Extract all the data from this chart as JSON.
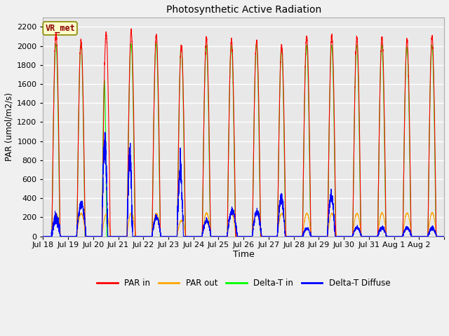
{
  "title": "Photosynthetic Active Radiation",
  "ylabel": "PAR (umol/m2/s)",
  "xlabel": "Time",
  "annotation": "VR_met",
  "ylim": [
    0,
    2300
  ],
  "yticks": [
    0,
    200,
    400,
    600,
    800,
    1000,
    1200,
    1400,
    1600,
    1800,
    2000,
    2200
  ],
  "series_colors": {
    "PAR_in": "#ff0000",
    "PAR_out": "#ffa500",
    "DeltaT_in": "#00ff00",
    "DeltaT_Diffuse": "#0000ff"
  },
  "legend_labels": [
    "PAR in",
    "PAR out",
    "Delta-T in",
    "Delta-T Diffuse"
  ],
  "legend_colors": [
    "#ff0000",
    "#ffa500",
    "#00ff00",
    "#0000ff"
  ],
  "plot_bg_color": "#e8e8e8",
  "fig_bg_color": "#f0f0f0",
  "grid_color": "#ffffff",
  "num_days": 16,
  "tick_labels": [
    "Jul 18",
    "Jul 19",
    "Jul 20",
    "Jul 21",
    "Jul 22",
    "Jul 23",
    "Jul 24",
    "Jul 25",
    "Jul 26",
    "Jul 27",
    "Jul 28",
    "Jul 29",
    "Jul 30",
    "Jul 31",
    "Aug 1",
    "Aug 2"
  ],
  "figsize": [
    6.4,
    4.8
  ],
  "dpi": 100
}
